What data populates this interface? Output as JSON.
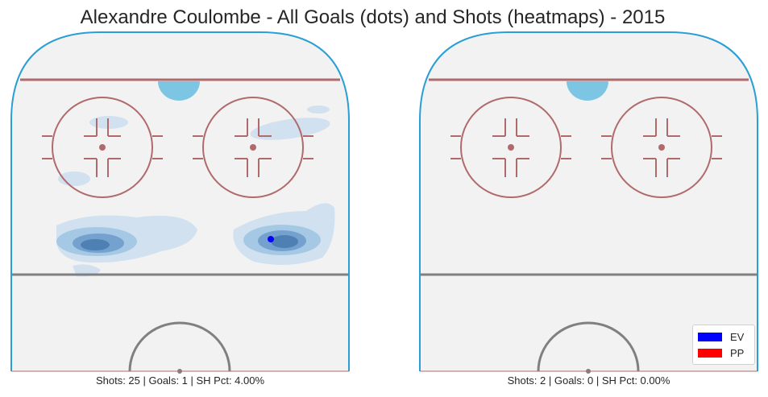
{
  "title": "Alexandre Coulombe - All Goals (dots) and Shots (heatmaps) - 2015",
  "colors": {
    "rink_fill": "#f2f2f2",
    "boards": "#2a9fd6",
    "red_line": "#b06a6c",
    "center_line": "#808080",
    "crease": "#7cc5e3",
    "heat_light": "#c9dcee",
    "heat_mid": "#9ec4e3",
    "heat_dark": "#4f80b4",
    "heat_core": "#3c5a91",
    "goal_ev": "#0000ff",
    "goal_pp": "#ff0000"
  },
  "panels": [
    {
      "strength": "EV",
      "caption": "Shots: 25 | Goals: 1 | SH Pct: 4.00%"
    },
    {
      "strength": "PP",
      "caption": "Shots: 2 | Goals: 0 | SH Pct: 0.00%"
    }
  ],
  "legend": {
    "placement": "bottom-right",
    "items": [
      {
        "label": "EV",
        "color": "#0000ff"
      },
      {
        "label": "PP",
        "color": "#ff0000"
      }
    ]
  },
  "chart_data": {
    "type": "heatmap",
    "title": "Alexandre Coulombe - All Goals (dots) and Shots (heatmaps) - 2015",
    "panels": [
      {
        "name": "EV",
        "shots": 25,
        "goals": 1,
        "sh_pct": "4.00%"
      },
      {
        "name": "PP",
        "shots": 2,
        "goals": 0,
        "sh_pct": "0.00%"
      }
    ],
    "goals": [
      {
        "panel": "EV",
        "strength": "EV",
        "location": "right slot, below right faceoff circle"
      }
    ]
  }
}
